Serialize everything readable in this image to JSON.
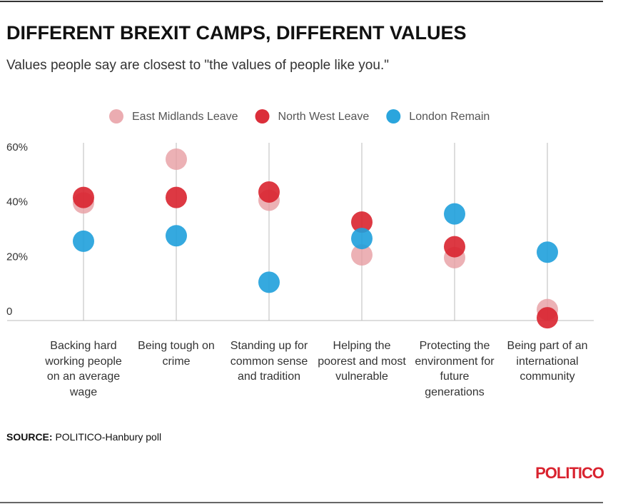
{
  "chart_data": {
    "type": "dot",
    "title": "DIFFERENT BREXIT CAMPS, DIFFERENT VALUES",
    "subtitle": "Values people say are closest to \"the values of people like you.\"",
    "categories": [
      "Backing hard working people on an average wage",
      "Being tough on crime",
      "Standing up for common sense and tradition",
      "Helping the poorest and most vulnerable",
      "Protecting the environment for future generations",
      "Being part of an international community"
    ],
    "series": [
      {
        "name": "East Midlands Leave",
        "color": "#e79ea3",
        "values": [
          43,
          59,
          44,
          24,
          23,
          4
        ]
      },
      {
        "name": "North West Leave",
        "color": "#d9232f",
        "values": [
          45,
          45,
          47,
          36,
          27,
          1
        ]
      },
      {
        "name": "London Remain",
        "color": "#1fa0db",
        "values": [
          29,
          31,
          14,
          30,
          39,
          25
        ]
      }
    ],
    "ylim": [
      0,
      65
    ],
    "yticks": [
      0,
      {
        "value": 20,
        "label": "20%"
      },
      {
        "value": 40,
        "label": "40%"
      },
      {
        "value": 60,
        "label": "60%"
      }
    ],
    "source_label": "SOURCE:",
    "source_text": "POLITICO-Hanbury poll",
    "brand": "POLITICO"
  }
}
